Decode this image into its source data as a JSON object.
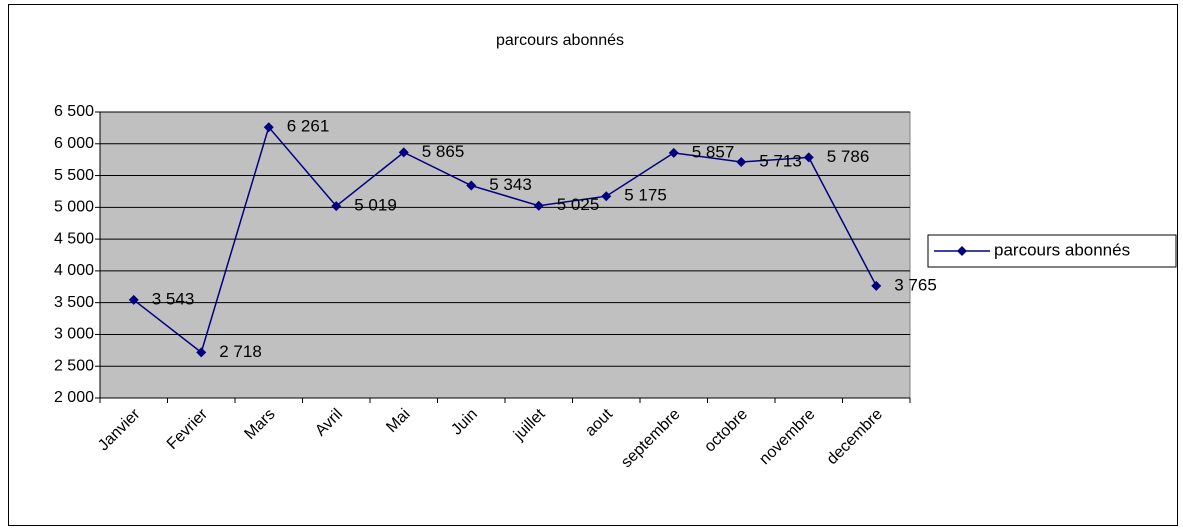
{
  "chart_data": {
    "type": "line",
    "title": "parcours abonnés",
    "categories": [
      "Janvier",
      "Fevrier",
      "Mars",
      "Avril",
      "Mai",
      "Juin",
      "juillet",
      "aout",
      "septembre",
      "octobre",
      "novembre",
      "decembre"
    ],
    "series": [
      {
        "name": "parcours abonnés",
        "color": "#000080",
        "values": [
          3543,
          2718,
          6261,
          5019,
          5865,
          5343,
          5025,
          5175,
          5857,
          5713,
          5786,
          3765
        ],
        "value_labels": [
          "3 543",
          "2 718",
          "6 261",
          "5 019",
          "5 865",
          "5 343",
          "5 025",
          "5 175",
          "5 857",
          "5 713",
          "5 786",
          "3 765"
        ]
      }
    ],
    "ylim": [
      2000,
      6500
    ],
    "yticks": [
      {
        "value": 2000,
        "label": "2 000"
      },
      {
        "value": 2500,
        "label": "2 500"
      },
      {
        "value": 3000,
        "label": "3 000"
      },
      {
        "value": 3500,
        "label": "3 500"
      },
      {
        "value": 4000,
        "label": "4 000"
      },
      {
        "value": 4500,
        "label": "4 500"
      },
      {
        "value": 5000,
        "label": "5 000"
      },
      {
        "value": 5500,
        "label": "5 500"
      },
      {
        "value": 6000,
        "label": "6 000"
      },
      {
        "value": 6500,
        "label": "6 500"
      }
    ],
    "grid": true,
    "legend": "right",
    "plot_background": "#c0c0c0"
  }
}
